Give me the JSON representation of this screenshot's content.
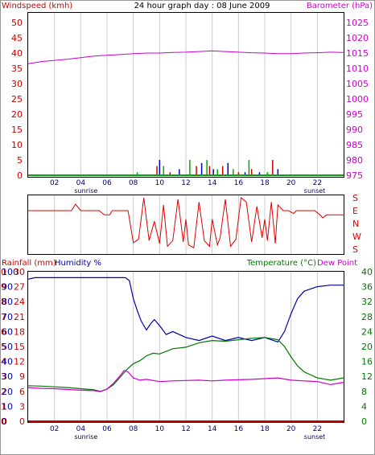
{
  "colors": {
    "wind": "#cc0000",
    "baro": "#cc00cc",
    "rain": "#cc0000",
    "humidity": "#0000aa",
    "temperature": "#007700",
    "dewpoint": "#cc00cc",
    "gust_green": "#00aa00",
    "gust_blue": "#0000cc",
    "wind_dir": "#dd0000",
    "grid": "#cccccc",
    "axis": "#000000"
  },
  "header": {
    "left_label": "Windspeed (kmh)",
    "center_title": "24 hour graph day : 08 June 2009",
    "right_label": "Barometer (hPa)"
  },
  "xaxis": {
    "ticks": [
      "02",
      "04",
      "06",
      "08",
      "10",
      "12",
      "14",
      "16",
      "18",
      "20",
      "22"
    ],
    "tick_hours": [
      2,
      4,
      6,
      8,
      10,
      12,
      14,
      16,
      18,
      20,
      22
    ],
    "sunrise_label": "sunrise",
    "sunset_label": "sunset",
    "sunrise_hour": 4.4,
    "sunset_hour": 21.8
  },
  "dir_axis": {
    "labels": [
      "S",
      "E",
      "N",
      "W",
      "S"
    ]
  },
  "bottom_header": {
    "left_label1": "Rainfall (mm)",
    "left_label2": "Humidity %",
    "right_label1": "Temperature (°C)",
    "right_label2": "Dew Point"
  },
  "chart_data": [
    {
      "type": "line",
      "title": "24 hour graph day : 08 June 2009",
      "left_axis": {
        "label": "Windspeed (kmh)",
        "ticks": [
          "50",
          "45",
          "40",
          "35",
          "30",
          "25",
          "20",
          "15",
          "10",
          "5",
          "0"
        ],
        "ylim": [
          0,
          50
        ]
      },
      "right_axis": {
        "label": "Barometer (hPa)",
        "ticks": [
          "1025",
          "1020",
          "1015",
          "1010",
          "1005",
          "1000",
          "995",
          "990",
          "985",
          "980",
          "975"
        ],
        "ylim": [
          975,
          1025
        ]
      },
      "x_range_hours": [
        0,
        24
      ],
      "series": [
        {
          "name": "Barometer (hPa)",
          "axis": "right",
          "x": [
            0,
            1,
            2,
            3,
            4,
            5,
            6,
            7,
            8,
            9,
            10,
            11,
            12,
            13,
            14,
            15,
            16,
            17,
            18,
            19,
            20,
            21,
            22,
            23,
            24
          ],
          "y": [
            1011.5,
            1012.2,
            1012.6,
            1013.0,
            1013.5,
            1014.0,
            1014.3,
            1014.5,
            1014.8,
            1015.0,
            1015.0,
            1015.2,
            1015.3,
            1015.5,
            1015.7,
            1015.5,
            1015.3,
            1015.1,
            1015.0,
            1014.8,
            1014.8,
            1015.0,
            1015.1,
            1015.3,
            1015.2
          ]
        },
        {
          "name": "Windspeed (kmh)",
          "axis": "left",
          "x": [
            8.3,
            9.8,
            10.0,
            10.3,
            10.8,
            11.5,
            12.3,
            12.8,
            13.2,
            13.6,
            13.8,
            14.1,
            14.4,
            14.8,
            15.2,
            15.6,
            16.0,
            16.5,
            16.8,
            17.0,
            17.6,
            18.2,
            18.6,
            19.0
          ],
          "y": [
            1,
            3,
            5,
            3,
            1,
            2,
            5,
            3,
            4,
            5,
            3,
            2,
            2,
            3,
            4,
            2,
            1,
            1,
            5,
            2,
            1,
            1,
            5,
            2
          ]
        }
      ]
    },
    {
      "type": "line",
      "title": "",
      "y_labels": [
        "S",
        "E",
        "N",
        "W",
        "S"
      ],
      "series": [
        {
          "name": "",
          "x": [
            0,
            3.3,
            3.6,
            4.0,
            5.4,
            5.8,
            6.2,
            6.4,
            7.0,
            7.6,
            8.0,
            8.4,
            8.8,
            9.2,
            9.6,
            10.0,
            10.3,
            10.6,
            11.0,
            11.4,
            11.8,
            12.0,
            12.2,
            12.6,
            13.0,
            13.4,
            13.8,
            14.0,
            14.4,
            14.6,
            15.0,
            15.4,
            15.8,
            16.2,
            16.6,
            17.0,
            17.4,
            17.8,
            18.0,
            18.2,
            18.5,
            18.8,
            19.0,
            19.4,
            19.8,
            20.2,
            20.4,
            21.0,
            21.8,
            22.2,
            22.4,
            22.7,
            23.0,
            24.0
          ],
          "y": [
            90,
            90,
            135,
            90,
            90,
            60,
            60,
            90,
            90,
            90,
            225,
            250,
            180,
            240,
            15,
            220,
            130,
            200,
            240,
            170,
            230,
            30,
            210,
            190,
            150,
            240,
            200,
            30,
            210,
            260,
            170,
            200,
            250,
            180,
            150,
            230,
            120,
            260,
            30,
            240,
            150,
            220,
            130,
            90,
            90,
            70,
            90,
            90,
            90,
            60,
            40,
            60,
            60,
            60
          ]
        }
      ]
    },
    {
      "type": "line",
      "title": "",
      "left_axis_outer": {
        "label": "Rainfall (mm)",
        "ticks": [
          "10",
          "9",
          "8",
          "7",
          "6",
          "5",
          "4",
          "3",
          "2",
          "1",
          "0"
        ],
        "ylim": [
          0,
          10
        ]
      },
      "left_axis_inner": {
        "label": "Humidity %",
        "ticks": [
          "100",
          "90",
          "80",
          "70",
          "60",
          "50",
          "40",
          "30",
          "20",
          "10",
          "0"
        ],
        "ylim": [
          0,
          100
        ]
      },
      "left_axis_inner2": {
        "ticks": [
          "30",
          "27",
          "24",
          "21",
          "18",
          "15",
          "12",
          "9",
          "6",
          "3",
          "0"
        ],
        "ylim": [
          0,
          30
        ]
      },
      "right_axis": {
        "label": "Temperature (°C)",
        "ticks": [
          "40",
          "36",
          "32",
          "28",
          "24",
          "20",
          "16",
          "12",
          "8",
          "4",
          "0"
        ],
        "ylim": [
          0,
          40
        ]
      },
      "series": [
        {
          "name": "Humidity %",
          "axis": "humidity",
          "x": [
            0,
            0.5,
            2,
            4,
            6,
            7.4,
            7.7,
            8.0,
            8.3,
            8.6,
            9.0,
            9.3,
            9.6,
            10.0,
            10.5,
            11,
            12,
            13,
            14,
            15,
            16,
            17,
            18,
            19,
            19.5,
            20,
            20.5,
            21,
            22,
            23,
            24
          ],
          "y": [
            95,
            96,
            96,
            96,
            96,
            96,
            94,
            82,
            74,
            67,
            61,
            65,
            68,
            64,
            58,
            60,
            56,
            54,
            57,
            54,
            56,
            54,
            56,
            53,
            60,
            72,
            82,
            87,
            90,
            91,
            91
          ]
        },
        {
          "name": "Temperature (°C)",
          "axis": "right",
          "x": [
            0,
            1,
            2,
            3,
            4,
            5,
            5.5,
            6,
            6.5,
            7,
            7.5,
            8,
            8.5,
            9,
            9.5,
            10,
            11,
            12,
            13,
            14,
            15,
            16,
            17,
            18,
            19,
            19.5,
            20,
            20.5,
            21,
            22,
            23,
            24
          ],
          "y": [
            9.5,
            9.4,
            9.2,
            9.0,
            8.7,
            8.4,
            8.0,
            8.6,
            9.8,
            11.8,
            13.8,
            15.4,
            16.2,
            17.5,
            18.2,
            18.0,
            19.4,
            19.8,
            21.0,
            21.6,
            21.4,
            21.8,
            22.2,
            22.4,
            21.8,
            20.0,
            17.2,
            14.8,
            13.2,
            11.6,
            11.0,
            11.6
          ]
        },
        {
          "name": "Dew Point",
          "axis": "right",
          "x": [
            0,
            1,
            2,
            3,
            4,
            5,
            5.5,
            6,
            6.5,
            7,
            7.3,
            7.6,
            8,
            8.5,
            9,
            10,
            11,
            12,
            13,
            14,
            15,
            16,
            17,
            18,
            19,
            20,
            21,
            22,
            23,
            24
          ],
          "y": [
            9.0,
            8.8,
            8.7,
            8.5,
            8.3,
            8.2,
            7.9,
            8.6,
            10.2,
            12.2,
            13.6,
            13.2,
            11.6,
            11.0,
            11.2,
            10.6,
            10.8,
            10.9,
            11.0,
            10.8,
            11.0,
            11.1,
            11.2,
            11.4,
            11.6,
            11.0,
            10.8,
            10.6,
            9.8,
            10.4
          ]
        },
        {
          "name": "Rainfall (mm)",
          "axis": "rain",
          "x": [
            0,
            24
          ],
          "y": [
            0,
            0
          ]
        }
      ]
    }
  ]
}
